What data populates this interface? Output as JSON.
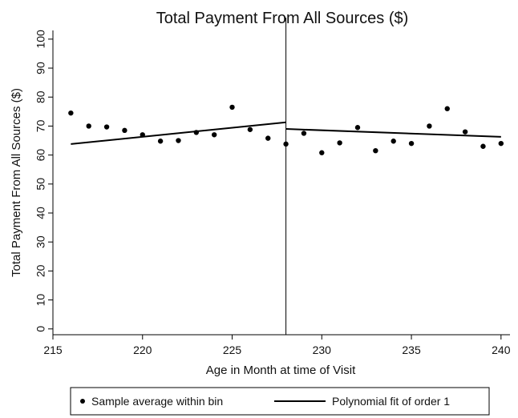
{
  "chart_data": {
    "type": "scatter",
    "title": "Total Payment From All Sources ($)",
    "xlabel": "Age in Month at time of Visit",
    "ylabel": "Total Payment From All Sources ($)",
    "xlim": [
      215,
      240.5
    ],
    "ylim": [
      -2,
      103
    ],
    "xticks": [
      215,
      220,
      225,
      230,
      235,
      240
    ],
    "yticks": [
      0,
      10,
      20,
      30,
      40,
      50,
      60,
      70,
      80,
      90,
      100
    ],
    "cutoff": 228,
    "grid": false,
    "legend_position": "bottom",
    "series": [
      {
        "name": "Sample average within bin",
        "kind": "scatter",
        "x": [
          216,
          217,
          218,
          219,
          220,
          221,
          222,
          223,
          224,
          225,
          226,
          227,
          228,
          229,
          230,
          231,
          232,
          233,
          234,
          235,
          236,
          237,
          238,
          239,
          240
        ],
        "y": [
          74.5,
          70,
          69.7,
          68.5,
          67,
          64.8,
          65,
          67.8,
          67,
          76.5,
          68.8,
          65.8,
          63.8,
          67.5,
          60.8,
          64.2,
          69.5,
          61.5,
          64.8,
          64,
          70,
          76,
          68,
          63,
          64
        ]
      },
      {
        "name": "Polynomial fit of order 1",
        "kind": "line",
        "segments": [
          {
            "x": [
              216,
              228
            ],
            "y": [
              63.8,
              71.3
            ]
          },
          {
            "x": [
              228,
              240
            ],
            "y": [
              69,
              66.3
            ]
          }
        ]
      }
    ]
  }
}
